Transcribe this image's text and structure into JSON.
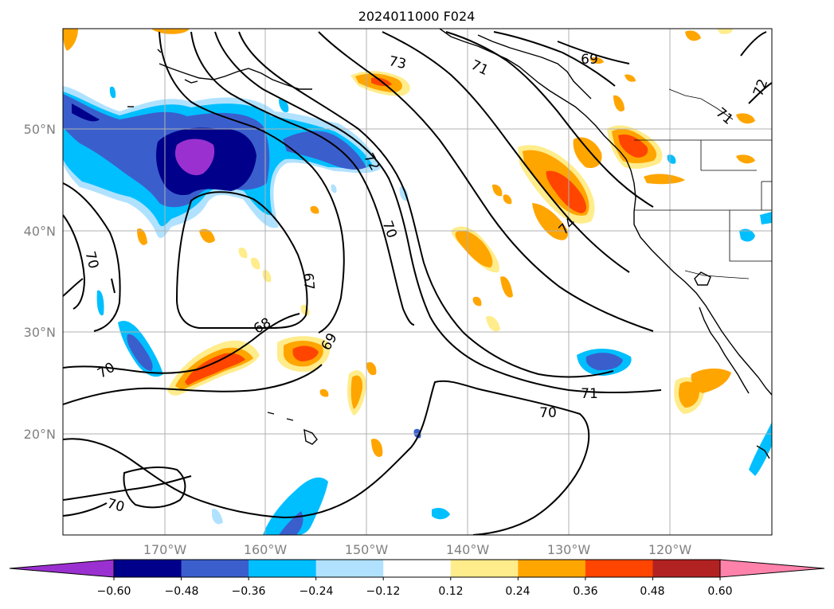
{
  "map": {
    "title": "2024011000 F024",
    "longitude_labels": [
      "170°W",
      "160°W",
      "150°W",
      "140°W",
      "130°W",
      "120°W"
    ],
    "latitude_labels": [
      "50°N",
      "40°N",
      "30°N",
      "20°N"
    ],
    "contour_labels": [
      "73",
      "71",
      "69",
      "72",
      "72",
      "71",
      "70",
      "67",
      "68",
      "69",
      "70",
      "70",
      "71",
      "70",
      "70",
      "74"
    ]
  },
  "colorbar": {
    "tick_labels": [
      "−0.60",
      "−0.48",
      "−0.36",
      "−0.24",
      "−0.12",
      "0.12",
      "0.24",
      "0.36",
      "0.48",
      "0.60"
    ],
    "colors": [
      "#9b30d0",
      "#00008b",
      "#3a5fcd",
      "#00bfff",
      "#b0e2ff",
      "#ffffff",
      "#ffec8b",
      "#ffa500",
      "#ff4500",
      "#b22222",
      "#ff82ab"
    ]
  },
  "colors": {
    "purple": "#9b30d0",
    "navy": "#00008b",
    "royal_blue": "#3a5fcd",
    "deep_sky_blue": "#00bfff",
    "light_blue": "#b0e2ff",
    "light_yellow": "#ffec8b",
    "orange": "#ffa500",
    "orange_red": "#ff4500",
    "firebrick": "#b22222",
    "pink": "#ff82ab"
  }
}
